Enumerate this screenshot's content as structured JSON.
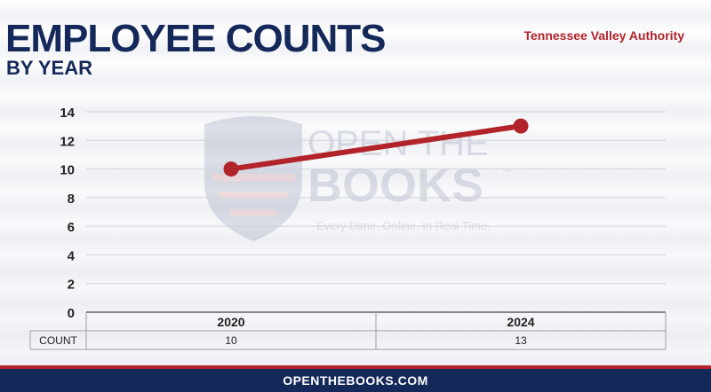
{
  "header": {
    "title": "EMPLOYEE COUNTS",
    "subtitle": "BY YEAR",
    "agency": "Tennessee Valley Authority"
  },
  "watermark": {
    "line1": "OPEN THE",
    "line2": "BOOKS",
    "tm": "™",
    "tagline": "Every Dime. Online. In Real Time."
  },
  "footer": {
    "site": "OPENTHEBOOKS.COM"
  },
  "colors": {
    "title": "#14285a",
    "series": "#b2232a",
    "footer_bg": "#14285a",
    "footer_stripe": "#b2232a"
  },
  "chart_data": {
    "type": "line",
    "categories": [
      "2020",
      "2024"
    ],
    "series": [
      {
        "values": [
          10,
          13
        ]
      }
    ],
    "ylim": [
      0,
      14
    ],
    "yticks": [
      0,
      2,
      4,
      6,
      8,
      10,
      12,
      14
    ],
    "grid": true,
    "table": {
      "row_label": "COUNT",
      "values": [
        "10",
        "13"
      ]
    }
  }
}
